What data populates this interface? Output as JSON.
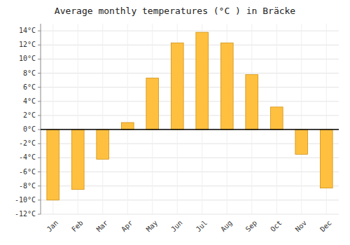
{
  "chart_data": {
    "type": "bar",
    "title": "Average monthly temperatures (°C ) in Bräcke",
    "categories": [
      "Jan",
      "Feb",
      "Mar",
      "Apr",
      "May",
      "Jun",
      "Jul",
      "Aug",
      "Sep",
      "Oct",
      "Nov",
      "Dec"
    ],
    "values": [
      -10,
      -8.5,
      -4.2,
      1.0,
      7.3,
      12.3,
      13.8,
      12.3,
      7.8,
      3.2,
      -3.5,
      -8.3
    ],
    "color": "#FFC040",
    "ylim": [
      -12,
      15
    ],
    "yticks": [
      {
        "value": -12,
        "label": "-12°C"
      },
      {
        "value": -10,
        "label": "-10°C"
      },
      {
        "value": -8,
        "label": "-8°C"
      },
      {
        "value": -6,
        "label": "-6°C"
      },
      {
        "value": -4,
        "label": "-4°C"
      },
      {
        "value": -2,
        "label": "-2°C"
      },
      {
        "value": 0,
        "label": "0°C"
      },
      {
        "value": 2,
        "label": "2°C"
      },
      {
        "value": 4,
        "label": "4°C"
      },
      {
        "value": 6,
        "label": "6°C"
      },
      {
        "value": 8,
        "label": "8°C"
      },
      {
        "value": 10,
        "label": "10°C"
      },
      {
        "value": 12,
        "label": "12°C"
      },
      {
        "value": 14,
        "label": "14°C"
      }
    ],
    "grid": true
  }
}
